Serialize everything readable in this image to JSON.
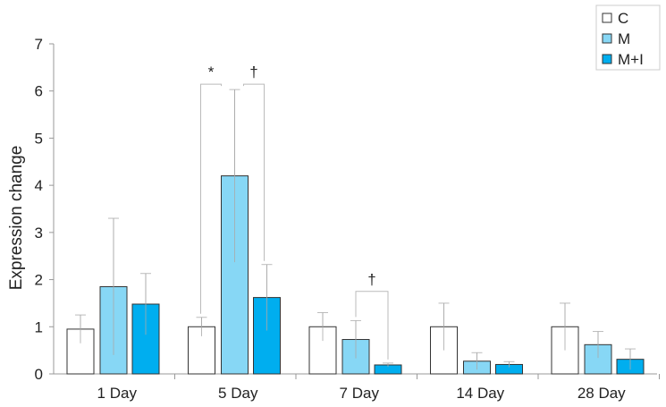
{
  "chart_data": {
    "type": "bar",
    "title": "",
    "xlabel": "",
    "ylabel": "Expression change",
    "ylim": [
      0,
      7
    ],
    "yticks": [
      0,
      1,
      2,
      3,
      4,
      5,
      6,
      7
    ],
    "grid": false,
    "legend_position": "top-right",
    "categories": [
      "1 Day",
      "5 Day",
      "7 Day",
      "14 Day",
      "28 Day"
    ],
    "series": [
      {
        "name": "C",
        "color": "#ffffff",
        "values": [
          0.95,
          1.0,
          1.0,
          1.0,
          1.0
        ],
        "error": [
          0.3,
          0.2,
          0.3,
          0.5,
          0.5
        ]
      },
      {
        "name": "M",
        "color": "#87d7f5",
        "values": [
          1.85,
          4.2,
          0.73,
          0.27,
          0.62
        ],
        "error": [
          1.45,
          1.83,
          0.4,
          0.18,
          0.28
        ]
      },
      {
        "name": "M+I",
        "color": "#00aeef",
        "values": [
          1.48,
          1.62,
          0.19,
          0.2,
          0.31
        ],
        "error": [
          0.65,
          0.7,
          0.04,
          0.06,
          0.22
        ]
      }
    ],
    "annotations": [
      {
        "label": "*",
        "category": "5 Day",
        "from_series": "C",
        "to_series": "M",
        "level": 6.6
      },
      {
        "label": "†",
        "category": "5 Day",
        "from_series": "M",
        "to_series": "M+I",
        "level": 6.6
      },
      {
        "label": "†",
        "category": "7 Day",
        "from_series": "M",
        "to_series": "M+I",
        "level": 1.75
      }
    ]
  }
}
